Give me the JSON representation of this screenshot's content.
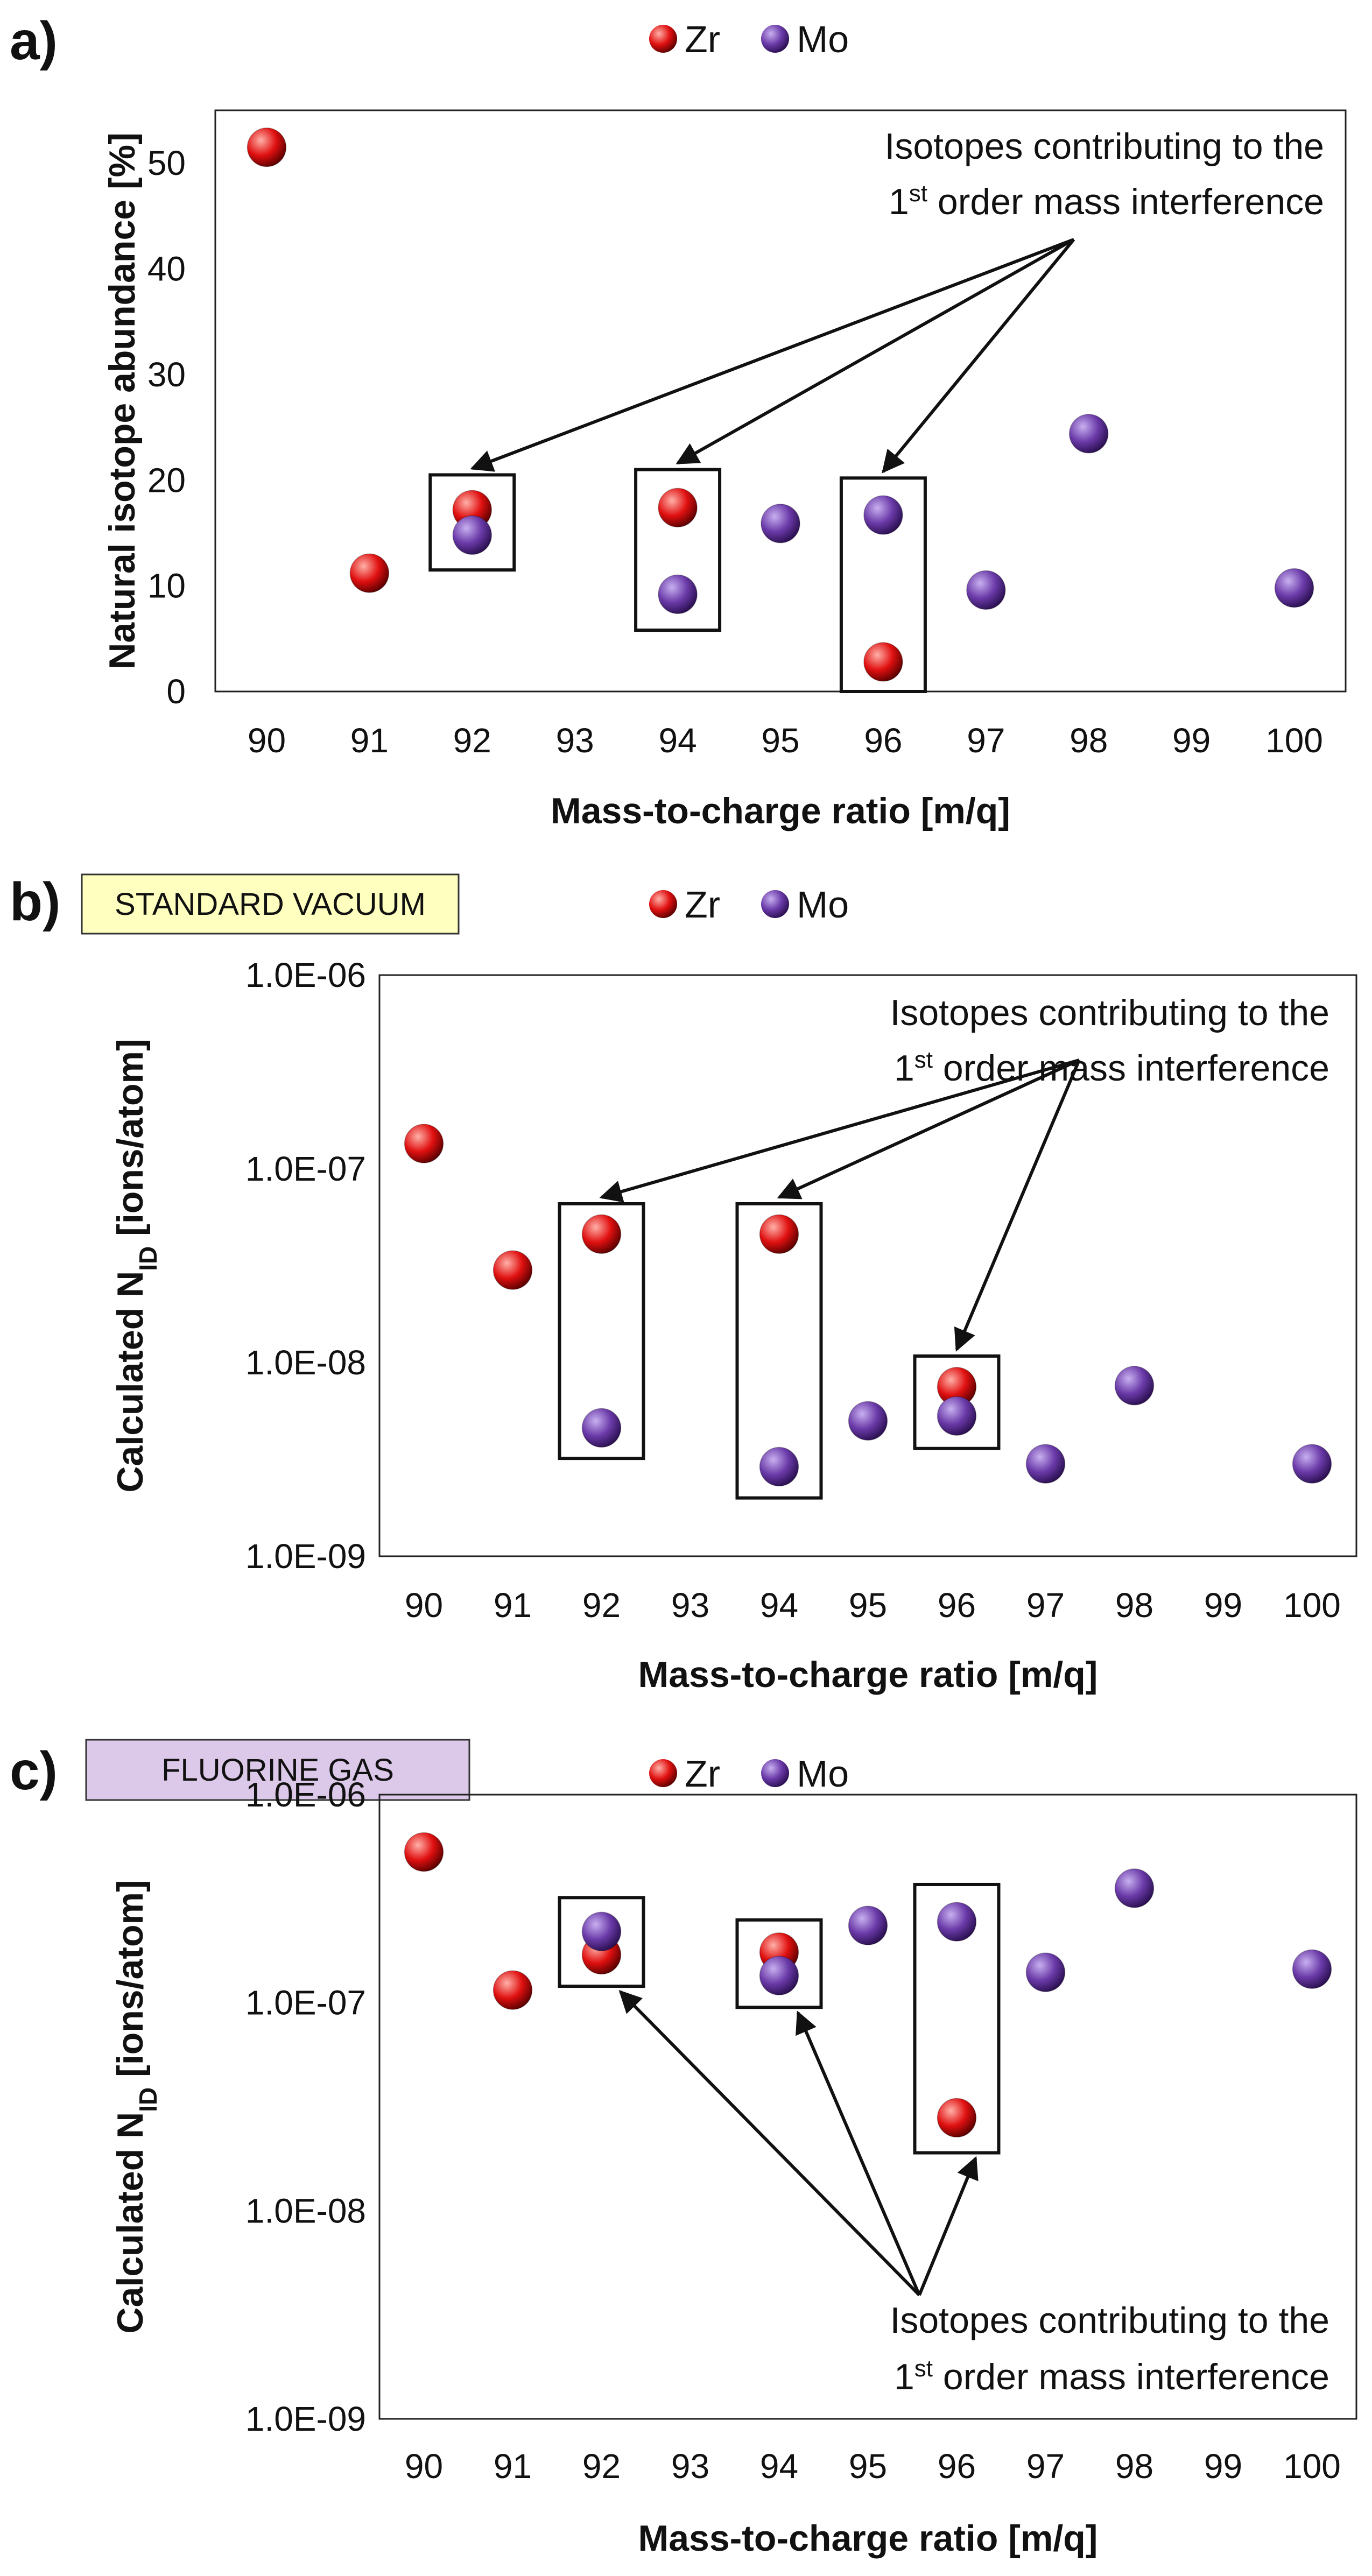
{
  "colors": {
    "zr": "#e01010",
    "mo": "#6a3aa8",
    "label_box_b": "#ffffc0",
    "label_box_c": "#dcc8e8"
  },
  "chart_data": [
    {
      "type": "scatter",
      "panel": "a)",
      "condition_label": "",
      "scale": "linear",
      "ylim": [
        0,
        55
      ],
      "yticks": [
        "0",
        "10",
        "20",
        "30",
        "40",
        "50"
      ],
      "ytick_values": [
        0,
        10,
        20,
        30,
        40,
        50
      ],
      "ylabel": "Natural isotope abundance [%]",
      "ylabel_sub": "",
      "ylabel_suffix": "",
      "xlabel": "Mass-to-charge ratio [m/q]",
      "categories": [
        "90",
        "91",
        "92",
        "93",
        "94",
        "95",
        "96",
        "97",
        "98",
        "99",
        "100"
      ],
      "legend": [
        "Zr",
        "Mo"
      ],
      "series": [
        {
          "name": "Zr",
          "x": [
            "90",
            "91",
            "92",
            "94",
            "96"
          ],
          "values": [
            51.5,
            11.2,
            17.2,
            17.4,
            2.8
          ]
        },
        {
          "name": "Mo",
          "x": [
            "92",
            "94",
            "95",
            "96",
            "97",
            "98",
            "100"
          ],
          "values": [
            14.8,
            9.2,
            15.9,
            16.7,
            9.6,
            24.4,
            9.8
          ]
        }
      ],
      "boxes": [
        {
          "x": "92",
          "y_range": [
            11.5,
            20.5
          ]
        },
        {
          "x": "94",
          "y_range": [
            5.8,
            21.0
          ]
        },
        {
          "x": "96",
          "y_range": [
            0,
            20.2
          ]
        }
      ],
      "annotation": {
        "line1": "Isotopes contributing to the",
        "line2_sup": "1",
        "line2_super": "st",
        "line2_rest": " order mass interference"
      }
    },
    {
      "type": "scatter",
      "panel": "b)",
      "condition_label": "STANDARD VACUUM",
      "scale": "log",
      "ylim": [
        1e-09,
        1e-06
      ],
      "yticks": [
        "1.0E-06",
        "1.0E-07",
        "1.0E-08",
        "1.0E-09"
      ],
      "ytick_values": [
        1e-06,
        1e-07,
        1e-08,
        1e-09
      ],
      "ylabel": "Calculated N",
      "ylabel_sub": "ID",
      "ylabel_suffix": " [ions/atom]",
      "xlabel": "Mass-to-charge ratio [m/q]",
      "categories": [
        "90",
        "91",
        "92",
        "93",
        "94",
        "95",
        "96",
        "97",
        "98",
        "99",
        "100"
      ],
      "legend": [
        "Zr",
        "Mo"
      ],
      "series": [
        {
          "name": "Zr",
          "x": [
            "90",
            "91",
            "92",
            "94",
            "96"
          ],
          "values": [
            1.35e-07,
            3e-08,
            4.6e-08,
            4.6e-08,
            7.5e-09
          ]
        },
        {
          "name": "Mo",
          "x": [
            "92",
            "94",
            "95",
            "96",
            "97",
            "98",
            "100"
          ],
          "values": [
            4.6e-09,
            2.9e-09,
            5e-09,
            5.3e-09,
            3e-09,
            7.6e-09,
            3e-09
          ]
        }
      ],
      "boxes": [
        {
          "x": "92",
          "y_range": [
            3.2e-09,
            6.6e-08
          ]
        },
        {
          "x": "94",
          "y_range": [
            2e-09,
            6.6e-08
          ]
        },
        {
          "x": "96",
          "y_range": [
            3.6e-09,
            1.08e-08
          ]
        }
      ],
      "annotation": {
        "line1": "Isotopes contributing to the",
        "line2_sup": "1",
        "line2_super": "st",
        "line2_rest": " order mass interference"
      }
    },
    {
      "type": "scatter",
      "panel": "c)",
      "condition_label": "FLUORINE GAS",
      "scale": "log",
      "ylim": [
        1e-09,
        1e-06
      ],
      "yticks": [
        "1.0E-06",
        "1.0E-07",
        "1.0E-08",
        "1.0E-09"
      ],
      "ytick_values": [
        1e-06,
        1e-07,
        1e-08,
        1e-09
      ],
      "ylabel": "Calculated N",
      "ylabel_sub": "ID",
      "ylabel_suffix": " [ions/atom]",
      "xlabel": "Mass-to-charge ratio [m/q]",
      "categories": [
        "90",
        "91",
        "92",
        "93",
        "94",
        "95",
        "96",
        "97",
        "98",
        "99",
        "100"
      ],
      "legend": [
        "Zr",
        "Mo"
      ],
      "series": [
        {
          "name": "Zr",
          "x": [
            "90",
            "91",
            "92",
            "94",
            "96"
          ],
          "values": [
            5.3e-07,
            1.15e-07,
            1.7e-07,
            1.75e-07,
            2.8e-08
          ]
        },
        {
          "name": "Mo",
          "x": [
            "92",
            "94",
            "95",
            "96",
            "97",
            "98",
            "100"
          ],
          "values": [
            2.2e-07,
            1.35e-07,
            2.35e-07,
            2.45e-07,
            1.4e-07,
            3.55e-07,
            1.45e-07
          ]
        }
      ],
      "boxes": [
        {
          "x": "92",
          "y_range": [
            1.2e-07,
            3.2e-07
          ]
        },
        {
          "x": "94",
          "y_range": [
            9.5e-08,
            2.5e-07
          ]
        },
        {
          "x": "96",
          "y_range": [
            1.9e-08,
            3.7e-07
          ]
        }
      ],
      "annotation": {
        "line1": "Isotopes contributing to the",
        "line2_sup": "1",
        "line2_super": "st",
        "line2_rest": " order mass interference"
      }
    }
  ]
}
